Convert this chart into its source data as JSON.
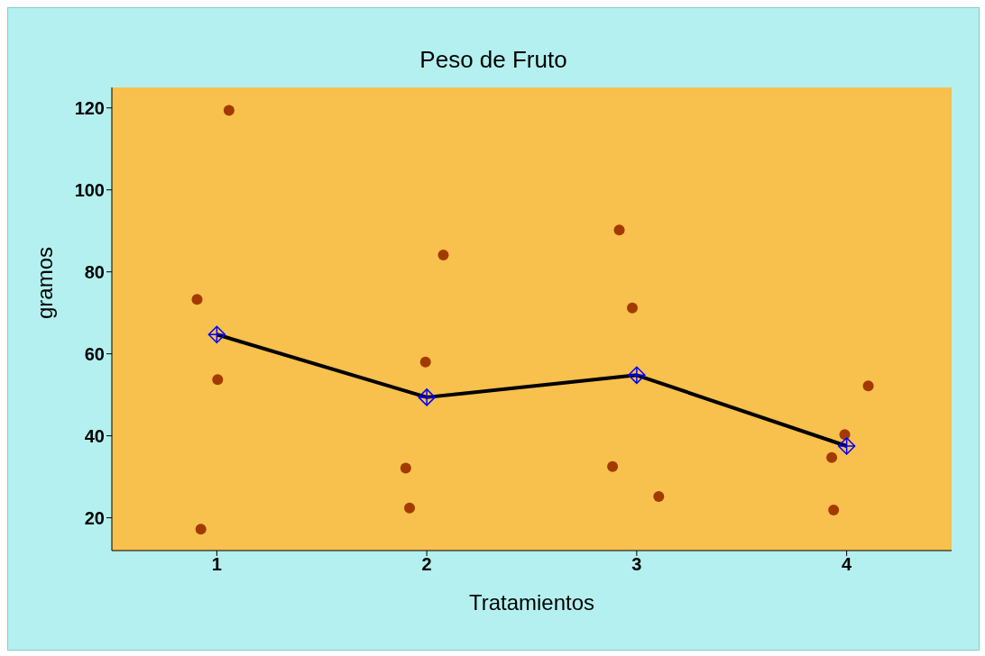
{
  "chart_data": {
    "type": "scatter",
    "title": "Peso de Fruto",
    "xlabel": "Tratamientos",
    "ylabel": "gramos",
    "xlim": [
      0.5,
      4.5
    ],
    "xticks": [
      1,
      2,
      3,
      4
    ],
    "ylim": [
      12,
      125
    ],
    "yticks": [
      20,
      40,
      60,
      80,
      100,
      120
    ],
    "grid": false,
    "legend": false,
    "series": [
      {
        "marker": "circle",
        "color": "#a33a00",
        "x": [
          0.906,
          1.058,
          1.004,
          0.924,
          1.994,
          2.079,
          1.9,
          1.918,
          2.917,
          2.979,
          2.885,
          3.105,
          4.103,
          3.991,
          3.929,
          3.938
        ],
        "values": [
          73.3,
          119.4,
          53.7,
          17.2,
          58.0,
          84.1,
          32.1,
          22.4,
          90.2,
          71.2,
          32.5,
          25.2,
          52.2,
          40.3,
          34.7,
          21.9
        ]
      },
      {
        "type": "line",
        "marker": "diamond",
        "color": "#000000",
        "colors": [
          "#0000ff",
          "#0000ff",
          "#0000ff",
          "#0000ff"
        ],
        "x": [
          1,
          2,
          3,
          4
        ],
        "values": [
          64.7,
          49.4,
          54.8,
          37.5
        ]
      }
    ]
  }
}
